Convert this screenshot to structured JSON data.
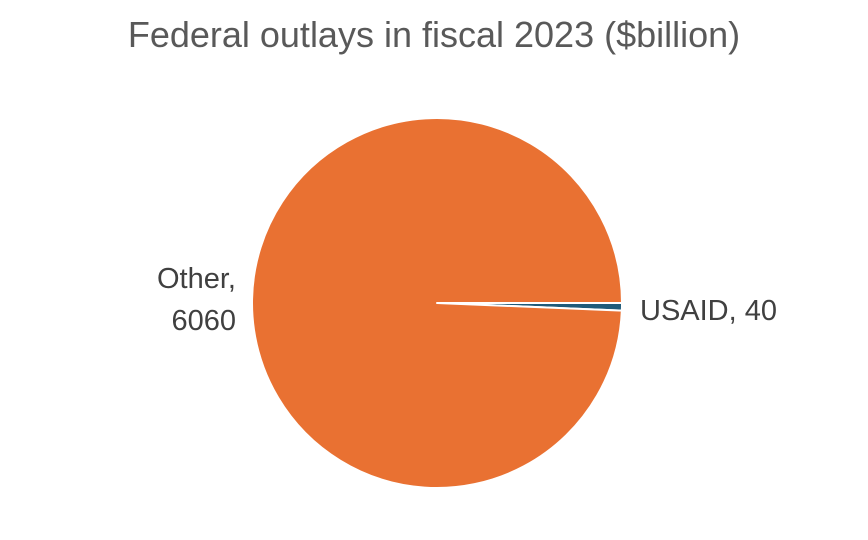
{
  "chart_data": {
    "type": "pie",
    "title": "Federal outlays in fiscal 2023 ($billion)",
    "slices": [
      {
        "name": "USAID",
        "value": 40,
        "color": "#1f5b7a",
        "label_lines": [
          "USAID, 40"
        ]
      },
      {
        "name": "Other",
        "value": 6060,
        "color": "#e97132",
        "label_lines": [
          "Other,",
          "6060"
        ]
      }
    ],
    "legend": "none",
    "start_angle_deg": 0
  }
}
